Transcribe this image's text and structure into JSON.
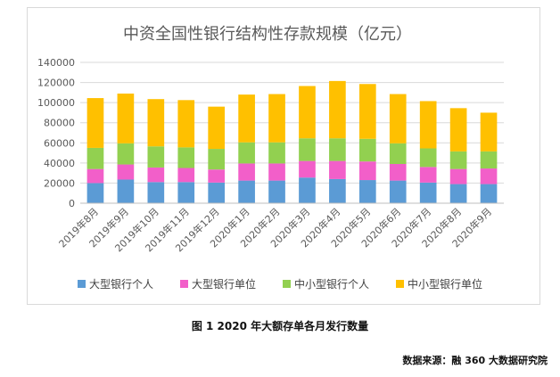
{
  "chart_data": {
    "type": "bar",
    "stacked": true,
    "title": "中资全国性银行结构性存款规模（亿元）",
    "categories": [
      "2019年8月",
      "2019年9月",
      "2019年10月",
      "2019年11月",
      "2019年12月",
      "2020年1月",
      "2020年2月",
      "2020年3月",
      "2020年4月",
      "2020年5月",
      "2020年6月",
      "2020年7月",
      "2020年8月",
      "2020年9月"
    ],
    "ylim": [
      0,
      140000
    ],
    "yticks": [
      "0",
      "20000",
      "40000",
      "60000",
      "80000",
      "100000",
      "120000",
      "140000"
    ],
    "grid": true,
    "legend_position": "bottom",
    "series": [
      {
        "name": "大型银行个人",
        "color": "#5b9bd5",
        "values": [
          20000,
          23500,
          21000,
          21000,
          20500,
          22500,
          22500,
          25500,
          24000,
          23000,
          22500,
          20500,
          19000,
          19000
        ]
      },
      {
        "name": "大型银行单位",
        "color": "#f25fc9",
        "values": [
          14000,
          15000,
          14500,
          14000,
          13000,
          17000,
          17000,
          16500,
          18000,
          18500,
          16500,
          15500,
          15000,
          15500
        ]
      },
      {
        "name": "中小型银行个人",
        "color": "#92d050",
        "values": [
          21000,
          21000,
          21000,
          20500,
          20500,
          21000,
          21000,
          22500,
          22500,
          22500,
          20500,
          18500,
          17500,
          17000
        ]
      },
      {
        "name": "中小型银行单位",
        "color": "#ffc000",
        "values": [
          49500,
          49500,
          47000,
          47000,
          42000,
          47500,
          48000,
          52000,
          57000,
          54500,
          49000,
          47000,
          43000,
          38500
        ]
      }
    ]
  },
  "caption": "图 1  2020 年大额存单各月发行数量",
  "source": "数据来源：融 360 大数据研究院"
}
